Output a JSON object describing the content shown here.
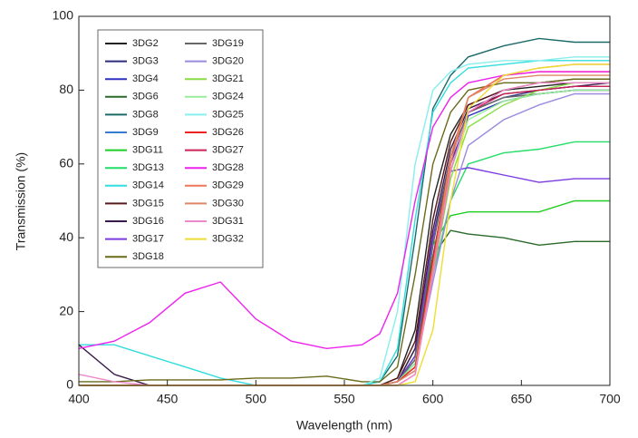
{
  "chart_data": {
    "type": "line",
    "xlabel": "Wavelength (nm)",
    "ylabel": "Transmission (%)",
    "xlim": [
      400,
      700
    ],
    "ylim": [
      0,
      100
    ],
    "xticks": [
      400,
      450,
      500,
      550,
      600,
      650,
      700
    ],
    "yticks": [
      0,
      20,
      40,
      60,
      80,
      100
    ],
    "x": [
      400,
      420,
      440,
      460,
      480,
      500,
      520,
      540,
      560,
      570,
      580,
      590,
      600,
      610,
      620,
      640,
      660,
      680,
      700
    ],
    "series": [
      {
        "name": "3DG2",
        "color": "#222222",
        "values": [
          0,
          0,
          0,
          0,
          0,
          0,
          0,
          0,
          0,
          0,
          2,
          15,
          50,
          68,
          76,
          80,
          81,
          82,
          82
        ]
      },
      {
        "name": "3DG3",
        "color": "#2b2b7a",
        "values": [
          0,
          0,
          0,
          0,
          0,
          0,
          0,
          0,
          0,
          0,
          1,
          8,
          40,
          62,
          74,
          78,
          80,
          81,
          81
        ]
      },
      {
        "name": "3DG4",
        "color": "#3030c0",
        "values": [
          0,
          0,
          0,
          0,
          0,
          0,
          0,
          0,
          0,
          0,
          1,
          6,
          35,
          60,
          73,
          77,
          79,
          80,
          80
        ]
      },
      {
        "name": "3DG6",
        "color": "#2a6a2a",
        "values": [
          0,
          0,
          0,
          0,
          0,
          0,
          0,
          0,
          0,
          0,
          1,
          10,
          35,
          42,
          41,
          40,
          38,
          39,
          39
        ]
      },
      {
        "name": "3DG8",
        "color": "#1a6a6a",
        "values": [
          0,
          0,
          0,
          0,
          0,
          0,
          0,
          0,
          0,
          1,
          8,
          40,
          75,
          84,
          89,
          92,
          94,
          93,
          93
        ]
      },
      {
        "name": "3DG9",
        "color": "#3a7ad0",
        "values": [
          0,
          0,
          0,
          0,
          0,
          0,
          0,
          0,
          0,
          0,
          1,
          7,
          38,
          62,
          74,
          78,
          79,
          80,
          80
        ]
      },
      {
        "name": "3DG11",
        "color": "#22cc22",
        "values": [
          0,
          0,
          0,
          0,
          0,
          0,
          0,
          0,
          0,
          0,
          1,
          8,
          38,
          46,
          47,
          47,
          47,
          50,
          50
        ]
      },
      {
        "name": "3DG13",
        "color": "#22dd66",
        "values": [
          0,
          0,
          0,
          0,
          0,
          0,
          0,
          0,
          0,
          0,
          1,
          6,
          30,
          50,
          60,
          63,
          64,
          66,
          66
        ]
      },
      {
        "name": "3DG14",
        "color": "#33dddd",
        "values": [
          11,
          11,
          8,
          5,
          2,
          0,
          0,
          0,
          0,
          1,
          10,
          45,
          74,
          82,
          86,
          87,
          88,
          88,
          88
        ]
      },
      {
        "name": "3DG15",
        "color": "#5a1a1a",
        "values": [
          0,
          0,
          0,
          0,
          0,
          0,
          0,
          0,
          0,
          0,
          2,
          12,
          45,
          66,
          76,
          80,
          82,
          83,
          83
        ]
      },
      {
        "name": "3DG16",
        "color": "#3a1a4a",
        "values": [
          11,
          3,
          0,
          0,
          0,
          0,
          0,
          0,
          0,
          0,
          1,
          10,
          42,
          64,
          75,
          79,
          80,
          81,
          82
        ]
      },
      {
        "name": "3DG17",
        "color": "#7a3ae0",
        "values": [
          0,
          0,
          0,
          0,
          0,
          0,
          0,
          0,
          0,
          0,
          1,
          8,
          40,
          58,
          59,
          57,
          55,
          56,
          56
        ]
      },
      {
        "name": "3DG18",
        "color": "#6a6a1a",
        "values": [
          1,
          1,
          1.5,
          1.5,
          1.5,
          2,
          2,
          2.5,
          1,
          1,
          5,
          30,
          60,
          74,
          80,
          82,
          82,
          83,
          83
        ]
      },
      {
        "name": "3DG19",
        "color": "#666666",
        "values": [
          0,
          0,
          0,
          0,
          0,
          0,
          0,
          0,
          0,
          0,
          1,
          7,
          38,
          62,
          74,
          78,
          79,
          80,
          80
        ]
      },
      {
        "name": "3DG20",
        "color": "#9a8ae0",
        "values": [
          0,
          0,
          0,
          0,
          0,
          0,
          0,
          0,
          0,
          0,
          1,
          5,
          28,
          50,
          65,
          72,
          76,
          79,
          79
        ]
      },
      {
        "name": "3DG21",
        "color": "#88dd44",
        "values": [
          0,
          0,
          0,
          0,
          0,
          0,
          0,
          0,
          0,
          0,
          1,
          5,
          30,
          56,
          70,
          76,
          80,
          82,
          82
        ]
      },
      {
        "name": "3DG24",
        "color": "#99ee99",
        "values": [
          0,
          0,
          0,
          0,
          0,
          0,
          0,
          0,
          0,
          0,
          1,
          6,
          32,
          58,
          72,
          77,
          79,
          80,
          80
        ]
      },
      {
        "name": "3DG25",
        "color": "#88eeee",
        "values": [
          0,
          0,
          0,
          0,
          0,
          0,
          0,
          0,
          0,
          2,
          20,
          60,
          80,
          85,
          87,
          88,
          88,
          89,
          89
        ]
      },
      {
        "name": "3DG26",
        "color": "#ee2222",
        "values": [
          0,
          0,
          0,
          0,
          0,
          0,
          0,
          0,
          0,
          0,
          1,
          5,
          34,
          62,
          78,
          84,
          85,
          85,
          85
        ]
      },
      {
        "name": "3DG27",
        "color": "#cc2255",
        "values": [
          0,
          0,
          0,
          0,
          0,
          0,
          0,
          0,
          0,
          0,
          1,
          4,
          30,
          58,
          74,
          79,
          80,
          81,
          81
        ]
      },
      {
        "name": "3DG28",
        "color": "#ee22ee",
        "values": [
          10,
          12,
          17,
          25,
          28,
          18,
          12,
          10,
          11,
          14,
          25,
          50,
          70,
          78,
          82,
          84,
          85,
          85,
          85
        ]
      },
      {
        "name": "3DG29",
        "color": "#ee7755",
        "values": [
          0,
          0,
          0,
          0,
          0,
          0,
          0,
          0,
          0,
          0,
          0,
          3,
          30,
          60,
          78,
          84,
          86,
          87,
          87
        ]
      },
      {
        "name": "3DG30",
        "color": "#dd8866",
        "values": [
          0,
          0,
          0,
          0,
          0,
          0,
          0,
          0,
          0,
          0,
          1,
          4,
          32,
          62,
          78,
          83,
          84,
          84,
          84
        ]
      },
      {
        "name": "3DG31",
        "color": "#ee88cc",
        "values": [
          3,
          1,
          0,
          0,
          0,
          0,
          0,
          0,
          0,
          0,
          0,
          3,
          30,
          58,
          74,
          80,
          82,
          82,
          82
        ]
      },
      {
        "name": "3DG32",
        "color": "#eedd33",
        "values": [
          0,
          0,
          0,
          0,
          0,
          0,
          0,
          0,
          0,
          0,
          0,
          1,
          15,
          50,
          75,
          84,
          86,
          87,
          87
        ]
      }
    ]
  }
}
